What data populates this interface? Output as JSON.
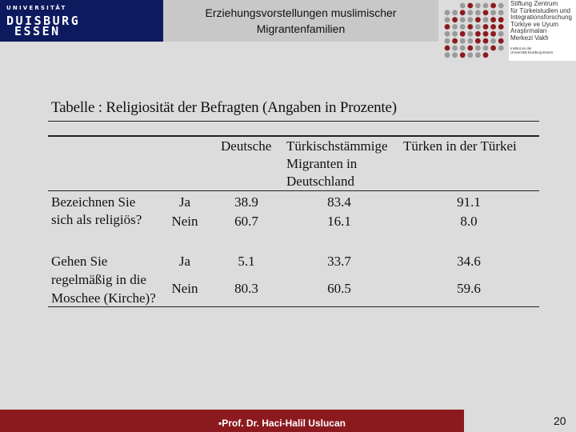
{
  "header": {
    "logo": {
      "line1": "UNIVERSITÄT",
      "line2": "DUISBURG",
      "line3": "ESSEN",
      "primary_color": "#0d1a5e"
    },
    "title_line1": "Erziehungsvorstellungen muslimischer",
    "title_line2": "Migrantenfamilien",
    "partner": {
      "lines": [
        "Stiftung Zentrum",
        "für Türkeistudien und",
        "Integrationsforschung",
        "Türkiye ve Uyum",
        "Araştırmaları",
        "Merkezi Vakfı",
        "Institut an der",
        "Universität Duisburg-Essen"
      ],
      "dot_colors": [
        "#8b1a1f",
        "#9a9a9a"
      ]
    }
  },
  "table": {
    "title": "Tabelle : Religiosität der Befragten (Angaben in Prozente)",
    "columns": {
      "c1": "Deutsche",
      "c2_line1": "Türkischstämmige",
      "c2_line2": "Migranten in",
      "c2_line3": "Deutschland",
      "c3": "Türken in der Türkei"
    },
    "rows": [
      {
        "question_line1": "Bezeichnen Sie",
        "question_line2": "sich als religiös?",
        "answers": [
          {
            "label": "Ja",
            "values": [
              "38.9",
              "83.4",
              "91.1"
            ]
          },
          {
            "label": "Nein",
            "values": [
              "60.7",
              "16.1",
              "8.0"
            ]
          }
        ]
      },
      {
        "question_line1": "Gehen Sie",
        "question_line2": "regelmäßig in die",
        "question_line3": "Moschee (Kirche)?",
        "answers": [
          {
            "label": "Ja",
            "values": [
              "5.1",
              "33.7",
              "34.6"
            ]
          },
          {
            "label": "Nein",
            "values": [
              "80.3",
              "60.5",
              "59.6"
            ]
          }
        ]
      }
    ]
  },
  "footer": {
    "author": "▪Prof. Dr. Haci-Halil Uslucan",
    "page_number": "20",
    "bar_color": "#8b1a1f"
  }
}
